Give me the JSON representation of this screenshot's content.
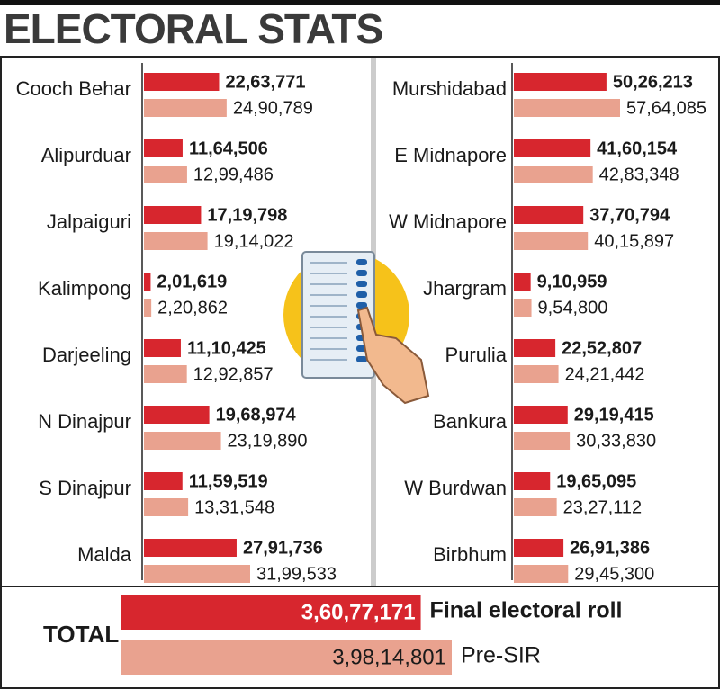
{
  "title": "ELECTORAL STATS",
  "chart_data": [
    {
      "type": "bar",
      "orientation": "horizontal",
      "categories": [
        "Cooch Behar",
        "Alipurduar",
        "Jalpaiguri",
        "Kalimpong",
        "Darjeeling",
        "N Dinajpur",
        "S Dinajpur",
        "Malda"
      ],
      "series": [
        {
          "color": "#d7262e",
          "values": [
            2263771,
            1164506,
            1719798,
            201619,
            1110425,
            1968974,
            1159519,
            2791736
          ],
          "value_labels": [
            "22,63,771",
            "11,64,506",
            "17,19,798",
            "2,01,619",
            "11,10,425",
            "19,68,974",
            "11,59,519",
            "27,91,736"
          ]
        },
        {
          "color": "#e9a28f",
          "values": [
            2490789,
            1299486,
            1914022,
            220862,
            1292857,
            2319890,
            1331548,
            3199533
          ],
          "value_labels": [
            "24,90,789",
            "12,99,486",
            "19,14,022",
            "2,20,862",
            "12,92,857",
            "23,19,890",
            "13,31,548",
            "31,99,533"
          ]
        }
      ]
    },
    {
      "type": "bar",
      "orientation": "horizontal",
      "categories": [
        "Murshidabad",
        "E Midnapore",
        "W Midnapore",
        "Jhargram",
        "Purulia",
        "Bankura",
        "W Burdwan",
        "Birbhum"
      ],
      "series": [
        {
          "color": "#d7262e",
          "values": [
            5026213,
            4160154,
            3770794,
            910959,
            2252807,
            2919415,
            1965095,
            2691386
          ],
          "value_labels": [
            "50,26,213",
            "41,60,154",
            "37,70,794",
            "9,10,959",
            "22,52,807",
            "29,19,415",
            "19,65,095",
            "26,91,386"
          ]
        },
        {
          "color": "#e9a28f",
          "values": [
            5764085,
            4283348,
            4015897,
            954800,
            2421442,
            3033830,
            2327112,
            2945300
          ],
          "value_labels": [
            "57,64,085",
            "42,83,348",
            "40,15,897",
            "9,54,800",
            "24,21,442",
            "30,33,830",
            "23,27,112",
            "29,45,300"
          ]
        }
      ]
    },
    {
      "type": "total",
      "categories": [
        "TOTAL"
      ],
      "series": [
        {
          "name": "Final electoral roll",
          "color": "#d7262e",
          "values": [
            36077171
          ],
          "value_labels": [
            "3,60,77,171"
          ]
        },
        {
          "name": "Pre-SIR",
          "color": "#e9a28f",
          "values": [
            39814801
          ],
          "value_labels": [
            "3,98,14,801"
          ]
        }
      ]
    }
  ]
}
